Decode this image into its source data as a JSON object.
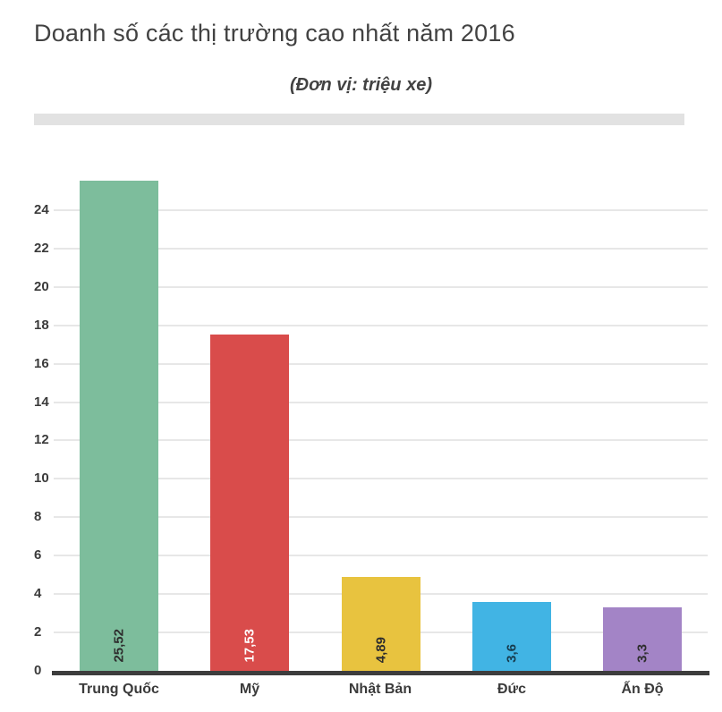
{
  "page": {
    "title": "Doanh số các thị trường cao nhất năm 2016",
    "subtitle": "(Đơn vị: triệu xe)"
  },
  "chart_data": {
    "type": "bar",
    "title": "Doanh số các thị trường cao nhất năm 2016",
    "subtitle": "(Đơn vị: triệu xe)",
    "categories": [
      "Trung Quốc",
      "Mỹ",
      "Nhật Bản",
      "Đức",
      "Ấn Độ"
    ],
    "values": [
      25.52,
      17.53,
      4.89,
      3.6,
      3.3
    ],
    "value_labels": [
      "25,52",
      "17,53",
      "4,89",
      "3,6",
      "3,3"
    ],
    "bar_colors": [
      "#7dbd9c",
      "#d94c4b",
      "#e8c33f",
      "#41b4e4",
      "#a384c6"
    ],
    "value_label_colors": [
      "#2e2e2e",
      "#ffffff",
      "#2e2e2e",
      "#173c4e",
      "#2e2e2e"
    ],
    "y_ticks": [
      0,
      2,
      4,
      6,
      8,
      10,
      12,
      14,
      16,
      18,
      20,
      22,
      24
    ],
    "ylim": [
      0,
      26
    ],
    "xlabel": "",
    "ylabel": "",
    "grid": true,
    "legend": "none",
    "axis_color": "#3d3d3d",
    "gridline_color": "#e7e7e7"
  }
}
